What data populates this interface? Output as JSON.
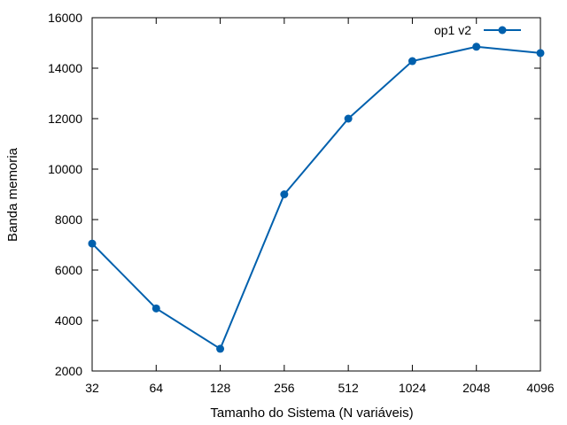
{
  "chart_data": {
    "type": "line",
    "title": "",
    "xlabel": "Tamanho do Sistema (N variáveis)",
    "ylabel": "Banda memoria",
    "categories": [
      "32",
      "64",
      "128",
      "256",
      "512",
      "1024",
      "2048",
      "4096"
    ],
    "x_scale": "log2",
    "ylim": [
      2000,
      16000
    ],
    "yticks": [
      2000,
      4000,
      6000,
      8000,
      10000,
      12000,
      14000,
      16000
    ],
    "grid": false,
    "legend_position": "top-right",
    "series": [
      {
        "name": "op1 v2",
        "color": "#0060ad",
        "marker": "circle",
        "values": [
          7050,
          4480,
          2880,
          9000,
          12000,
          14280,
          14850,
          14600
        ]
      }
    ]
  }
}
